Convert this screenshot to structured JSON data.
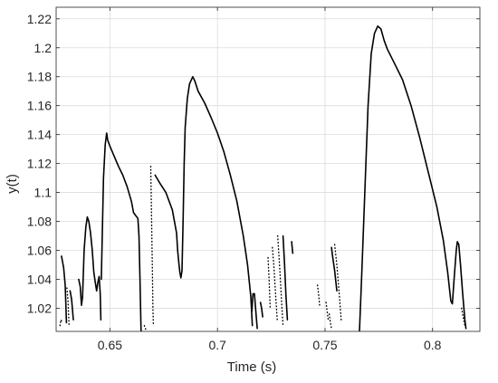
{
  "chart_data": {
    "type": "line",
    "xlabel": "Time (s)",
    "ylabel": "y(t)",
    "xlim": [
      0.625,
      0.822
    ],
    "ylim": [
      1.004,
      1.228
    ],
    "grid": true,
    "x_ticks": [
      0.65,
      0.7,
      0.75,
      0.8
    ],
    "x_tick_labels": [
      "0.65",
      "0.7",
      "0.75",
      "0.8"
    ],
    "y_ticks": [
      1.02,
      1.04,
      1.06,
      1.08,
      1.1,
      1.12,
      1.14,
      1.16,
      1.18,
      1.2,
      1.22
    ],
    "y_tick_labels": [
      "1.02",
      "1.04",
      "1.06",
      "1.08",
      "1.1",
      "1.12",
      "1.14",
      "1.16",
      "1.18",
      "1.2",
      "1.22"
    ],
    "line_color": "#000000",
    "series": [
      {
        "style": "solid",
        "segments": [
          [
            [
              0.6275,
              1.056
            ],
            [
              0.6285,
              1.048
            ],
            [
              0.6292,
              1.036
            ],
            [
              0.6298,
              1.01
            ]
          ],
          [
            [
              0.6315,
              1.032
            ],
            [
              0.6322,
              1.026
            ],
            [
              0.633,
              1.012
            ]
          ],
          [
            [
              0.6355,
              1.04
            ],
            [
              0.6362,
              1.035
            ],
            [
              0.6368,
              1.022
            ],
            [
              0.6373,
              1.028
            ],
            [
              0.638,
              1.06
            ],
            [
              0.6388,
              1.076
            ],
            [
              0.6395,
              1.083
            ],
            [
              0.6402,
              1.08
            ],
            [
              0.641,
              1.072
            ],
            [
              0.6418,
              1.06
            ],
            [
              0.6425,
              1.045
            ],
            [
              0.6432,
              1.038
            ],
            [
              0.6438,
              1.032
            ],
            [
              0.6444,
              1.038
            ],
            [
              0.645,
              1.042
            ],
            [
              0.6455,
              1.03
            ],
            [
              0.6458,
              1.012
            ]
          ],
          [
            [
              0.646,
              1.04
            ],
            [
              0.6465,
              1.075
            ],
            [
              0.647,
              1.11
            ],
            [
              0.6478,
              1.133
            ],
            [
              0.6485,
              1.141
            ],
            [
              0.649,
              1.136
            ],
            [
              0.65,
              1.132
            ],
            [
              0.652,
              1.125
            ],
            [
              0.654,
              1.118
            ],
            [
              0.656,
              1.112
            ],
            [
              0.658,
              1.104
            ],
            [
              0.66,
              1.094
            ],
            [
              0.661,
              1.086
            ],
            [
              0.662,
              1.084
            ],
            [
              0.663,
              1.082
            ],
            [
              0.6635,
              1.07
            ],
            [
              0.664,
              1.04
            ],
            [
              0.6645,
              1.004
            ]
          ],
          [
            [
              0.671,
              1.112
            ],
            [
              0.673,
              1.107
            ],
            [
              0.676,
              1.1
            ],
            [
              0.679,
              1.088
            ],
            [
              0.681,
              1.072
            ],
            [
              0.6815,
              1.06
            ],
            [
              0.682,
              1.052
            ],
            [
              0.6825,
              1.045
            ],
            [
              0.683,
              1.041
            ],
            [
              0.6835,
              1.046
            ],
            [
              0.684,
              1.08
            ],
            [
              0.6845,
              1.12
            ],
            [
              0.685,
              1.145
            ],
            [
              0.686,
              1.165
            ],
            [
              0.687,
              1.175
            ],
            [
              0.6885,
              1.18
            ],
            [
              0.6895,
              1.177
            ],
            [
              0.691,
              1.17
            ],
            [
              0.694,
              1.162
            ],
            [
              0.697,
              1.152
            ],
            [
              0.7,
              1.141
            ],
            [
              0.703,
              1.128
            ],
            [
              0.706,
              1.112
            ],
            [
              0.709,
              1.094
            ],
            [
              0.712,
              1.07
            ],
            [
              0.714,
              1.05
            ],
            [
              0.7155,
              1.028
            ],
            [
              0.7162,
              1.008
            ]
          ],
          [
            [
              0.716,
              1.018
            ],
            [
              0.7165,
              1.03
            ],
            [
              0.7172,
              1.03
            ],
            [
              0.718,
              1.015
            ],
            [
              0.7185,
              1.006
            ]
          ],
          [
            [
              0.72,
              1.024
            ],
            [
              0.7205,
              1.02
            ],
            [
              0.721,
              1.014
            ]
          ],
          [
            [
              0.7305,
              1.07
            ],
            [
              0.7312,
              1.05
            ],
            [
              0.7318,
              1.03
            ],
            [
              0.7325,
              1.012
            ]
          ],
          [
            [
              0.7345,
              1.066
            ],
            [
              0.735,
              1.058
            ]
          ],
          [
            [
              0.753,
              1.062
            ],
            [
              0.7535,
              1.056
            ],
            [
              0.7545,
              1.046
            ],
            [
              0.7555,
              1.032
            ]
          ],
          [
            [
              0.766,
              1.004
            ],
            [
              0.767,
              1.04
            ],
            [
              0.7685,
              1.1
            ],
            [
              0.77,
              1.16
            ],
            [
              0.7715,
              1.196
            ],
            [
              0.773,
              1.21
            ],
            [
              0.7745,
              1.215
            ],
            [
              0.776,
              1.213
            ],
            [
              0.7775,
              1.205
            ],
            [
              0.779,
              1.199
            ],
            [
              0.782,
              1.19
            ],
            [
              0.786,
              1.178
            ],
            [
              0.79,
              1.16
            ],
            [
              0.794,
              1.138
            ],
            [
              0.798,
              1.114
            ],
            [
              0.802,
              1.09
            ],
            [
              0.805,
              1.067
            ],
            [
              0.807,
              1.045
            ],
            [
              0.8085,
              1.025
            ],
            [
              0.8092,
              1.023
            ],
            [
              0.81,
              1.04
            ],
            [
              0.811,
              1.06
            ],
            [
              0.8115,
              1.066
            ],
            [
              0.8122,
              1.064
            ],
            [
              0.813,
              1.05
            ],
            [
              0.814,
              1.03
            ],
            [
              0.815,
              1.012
            ],
            [
              0.8155,
              1.006
            ]
          ]
        ]
      },
      {
        "style": "dotted",
        "segments": [
          [
            [
              0.6268,
              1.008
            ],
            [
              0.6272,
              1.012
            ],
            [
              0.628,
              1.01
            ]
          ],
          [
            [
              0.63,
              1.034
            ],
            [
              0.6305,
              1.025
            ],
            [
              0.631,
              1.008
            ]
          ],
          [
            [
              0.669,
              1.118
            ],
            [
              0.6693,
              1.09
            ],
            [
              0.6697,
              1.05
            ],
            [
              0.67,
              1.02
            ],
            [
              0.6702,
              1.008
            ]
          ],
          [
            [
              0.7255,
              1.062
            ],
            [
              0.7262,
              1.05
            ],
            [
              0.727,
              1.03
            ],
            [
              0.7278,
              1.012
            ]
          ],
          [
            [
              0.728,
              1.07
            ],
            [
              0.729,
              1.046
            ],
            [
              0.73,
              1.02
            ],
            [
              0.7305,
              1.008
            ]
          ],
          [
            [
              0.7235,
              1.055
            ],
            [
              0.724,
              1.04
            ],
            [
              0.7245,
              1.02
            ]
          ],
          [
            [
              0.7465,
              1.036
            ],
            [
              0.747,
              1.03
            ],
            [
              0.7475,
              1.022
            ]
          ],
          [
            [
              0.7545,
              1.064
            ],
            [
              0.7555,
              1.05
            ],
            [
              0.7565,
              1.032
            ],
            [
              0.7575,
              1.012
            ]
          ],
          [
            [
              0.7505,
              1.024
            ],
            [
              0.751,
              1.018
            ],
            [
              0.7515,
              1.012
            ]
          ],
          [
            [
              0.752,
              1.016
            ],
            [
              0.7525,
              1.01
            ],
            [
              0.753,
              1.006
            ]
          ],
          [
            [
              0.8135,
              1.02
            ],
            [
              0.8142,
              1.014
            ],
            [
              0.815,
              1.008
            ]
          ],
          [
            [
              0.666,
              1.008
            ],
            [
              0.6665,
              1.006
            ],
            [
              0.667,
              1.004
            ]
          ]
        ]
      }
    ]
  }
}
